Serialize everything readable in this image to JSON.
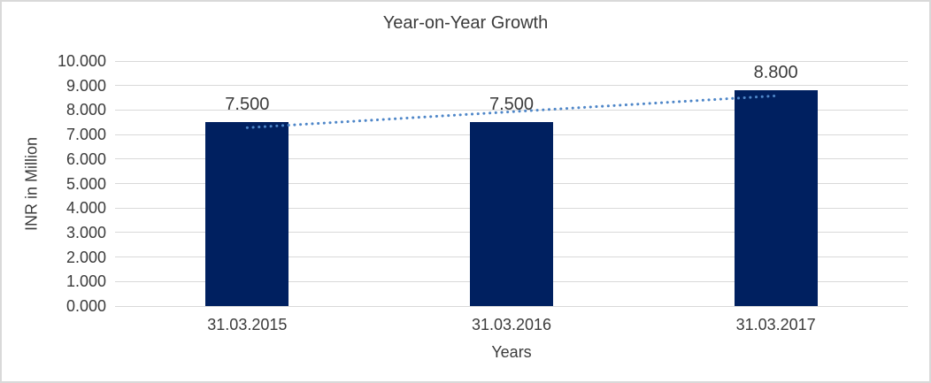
{
  "chart_data": {
    "type": "bar",
    "title": "Year-on-Year Growth",
    "xlabel": "Years",
    "ylabel": "INR in Million",
    "categories": [
      "31.03.2015",
      "31.03.2016",
      "31.03.2017"
    ],
    "values": [
      7.5,
      7.5,
      8.8
    ],
    "bar_labels": [
      "7.500",
      "7.500",
      "8.800"
    ],
    "y_tick_labels": [
      "0.000",
      "1.000",
      "2.000",
      "3.000",
      "4.000",
      "5.000",
      "6.000",
      "7.000",
      "8.000",
      "9.000",
      "10.000"
    ],
    "ylim": [
      0,
      10
    ],
    "grid": "horizontal-only",
    "legend": "none",
    "bar_color": "#002060",
    "gridline_color": "#d9d9d9",
    "text_color": "#3b3b3b",
    "frame_color": "#d9d9d9",
    "background_color": "#ffffff",
    "trendline": {
      "type": "linear",
      "style": "dotted",
      "color": "#4e86c8",
      "start_value": 7.28,
      "end_value": 8.58
    }
  }
}
